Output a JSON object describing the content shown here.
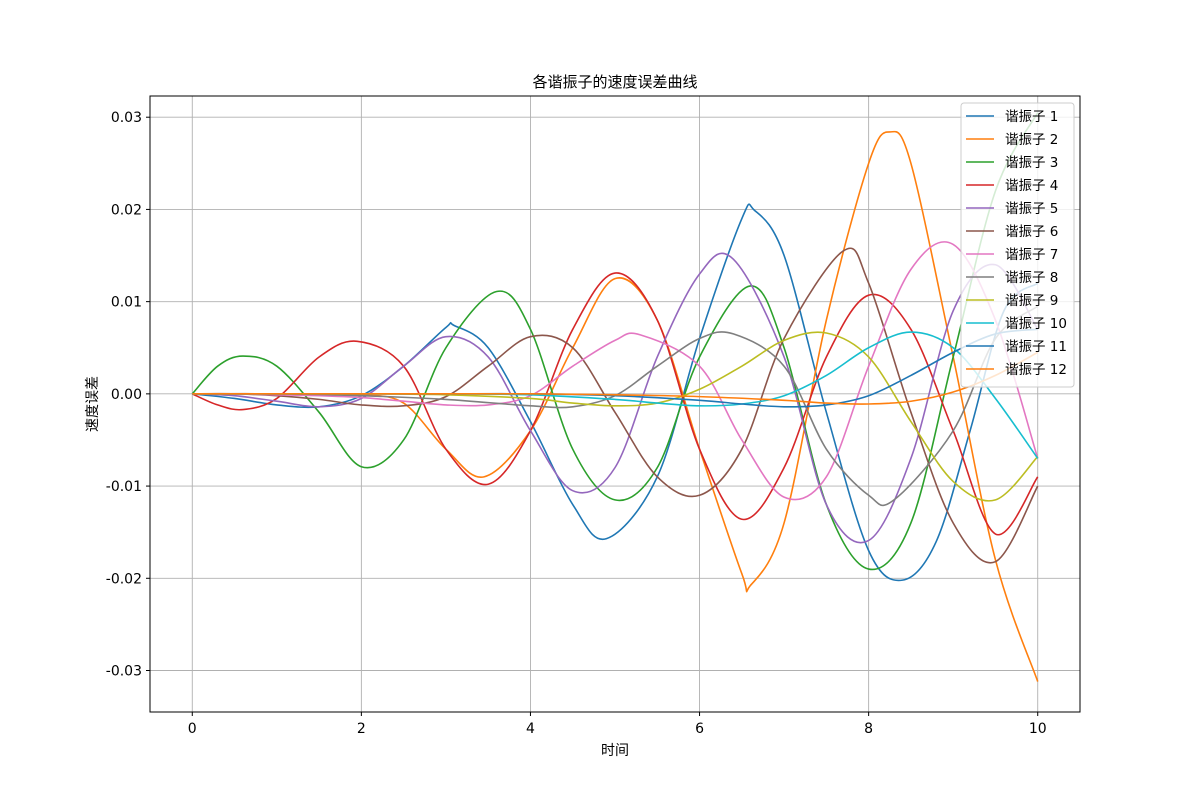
{
  "chart_data": {
    "type": "line",
    "title": "各谐振子的速度误差曲线",
    "xlabel": "时间",
    "ylabel": "速度误差",
    "xlim": [
      -0.5,
      10.5
    ],
    "ylim": [
      -0.0345,
      0.0323
    ],
    "xticks": [
      0,
      2,
      4,
      6,
      8,
      10
    ],
    "xtick_labels": [
      "0",
      "2",
      "4",
      "6",
      "8",
      "10"
    ],
    "yticks": [
      -0.03,
      -0.02,
      -0.01,
      0.0,
      0.01,
      0.02,
      0.03
    ],
    "ytick_labels": [
      "-0.03",
      "-0.02",
      "-0.01",
      "0.00",
      "0.01",
      "0.02",
      "0.03"
    ],
    "grid": true,
    "legend_position": "upper right",
    "series": [
      {
        "name": "谐振子 1",
        "color": "#1f77b4",
        "x": [
          0,
          0.5,
          1,
          1.5,
          2,
          2.5,
          3,
          3.1,
          3.5,
          4,
          4.5,
          4.9,
          5.5,
          6,
          6.5,
          6.65,
          7,
          7.5,
          8,
          8.4,
          8.8,
          9.2,
          9.6,
          10
        ],
        "y": [
          0,
          -0.0005,
          -0.0012,
          -0.0014,
          -0.0002,
          0.003,
          0.0072,
          0.0074,
          0.005,
          -0.003,
          -0.012,
          -0.0157,
          -0.009,
          0.006,
          0.019,
          0.0199,
          0.015,
          -0.002,
          -0.017,
          -0.0202,
          -0.016,
          -0.004,
          0.009,
          0.012
        ]
      },
      {
        "name": "谐振子 2",
        "color": "#ff7f0e",
        "x": [
          0,
          0.5,
          1,
          1.5,
          2,
          2.5,
          3,
          3.45,
          4,
          4.5,
          5,
          5.5,
          6,
          6.5,
          6.6,
          7,
          7.5,
          8,
          8.25,
          8.5,
          9,
          9.5,
          10
        ],
        "y": [
          0,
          0,
          0,
          0,
          -0.0001,
          -0.001,
          -0.006,
          -0.009,
          -0.004,
          0.005,
          0.0125,
          0.008,
          -0.006,
          -0.0195,
          -0.0208,
          -0.014,
          0.008,
          0.025,
          0.0284,
          0.025,
          0.004,
          -0.018,
          -0.0312
        ]
      },
      {
        "name": "谐振子 3",
        "color": "#2ca02c",
        "x": [
          0,
          0.3,
          0.6,
          1,
          1.5,
          2,
          2.5,
          3,
          3.6,
          4,
          4.5,
          5,
          5.5,
          6,
          6.6,
          7,
          7.5,
          8,
          8.5,
          9,
          9.5,
          10
        ],
        "y": [
          0,
          0.003,
          0.0041,
          0.003,
          -0.002,
          -0.0079,
          -0.005,
          0.005,
          0.0111,
          0.007,
          -0.006,
          -0.0115,
          -0.008,
          0.004,
          0.0117,
          0.005,
          -0.012,
          -0.019,
          -0.014,
          0.004,
          0.022,
          0.0305
        ]
      },
      {
        "name": "谐振子 4",
        "color": "#d62728",
        "x": [
          0,
          0.3,
          0.6,
          1,
          1.5,
          1.95,
          2.5,
          3,
          3.5,
          4,
          4.5,
          5,
          5.5,
          6,
          6.5,
          7,
          7.5,
          8,
          8.5,
          9,
          9.5,
          10
        ],
        "y": [
          0,
          -0.0012,
          -0.0017,
          -0.0005,
          0.004,
          0.0057,
          0.003,
          -0.006,
          -0.0098,
          -0.004,
          0.007,
          0.0131,
          0.008,
          -0.006,
          -0.0136,
          -0.008,
          0.004,
          0.0107,
          0.007,
          -0.004,
          -0.0152,
          -0.009
        ]
      },
      {
        "name": "谐振子 5",
        "color": "#9467bd",
        "x": [
          0,
          0.5,
          1,
          1.5,
          2,
          2.5,
          3,
          3.5,
          4,
          4.5,
          5,
          5.5,
          6,
          6.4,
          7,
          7.5,
          8,
          8.5,
          9,
          9.5,
          10
        ],
        "y": [
          0,
          -0.0002,
          -0.0008,
          -0.0014,
          -0.0005,
          0.003,
          0.0062,
          0.004,
          -0.004,
          -0.0105,
          -0.008,
          0.004,
          0.013,
          0.0146,
          0.004,
          -0.012,
          -0.0159,
          -0.007,
          0.009,
          0.014,
          0.007
        ]
      },
      {
        "name": "谐振子 6",
        "color": "#8c564b",
        "x": [
          0,
          0.5,
          1,
          1.5,
          2,
          2.5,
          3,
          3.5,
          4,
          4.5,
          5,
          5.5,
          6,
          6.5,
          7,
          7.7,
          8,
          8.5,
          9,
          9.5,
          10
        ],
        "y": [
          0,
          0,
          -0.0002,
          -0.0006,
          -0.0012,
          -0.0013,
          -0.0003,
          0.003,
          0.0062,
          0.005,
          -0.002,
          -0.009,
          -0.011,
          -0.006,
          0.006,
          0.0155,
          0.012,
          -0.002,
          -0.014,
          -0.0182,
          -0.01
        ]
      },
      {
        "name": "谐振子 7",
        "color": "#e377c2",
        "x": [
          0,
          0.5,
          1,
          1.5,
          2,
          2.5,
          3,
          3.5,
          4,
          4.5,
          5,
          5.3,
          6,
          6.5,
          7,
          7.5,
          8,
          8.5,
          9,
          9.5,
          10
        ],
        "y": [
          0,
          0,
          -0.0001,
          -0.0002,
          -0.0004,
          -0.0008,
          -0.0012,
          -0.0012,
          -0.0002,
          0.003,
          0.0058,
          0.0064,
          0.003,
          -0.005,
          -0.0112,
          -0.009,
          0.003,
          0.0135,
          0.0162,
          0.008,
          -0.007
        ]
      },
      {
        "name": "谐振子 8",
        "color": "#7f7f7f",
        "x": [
          0,
          1,
          2,
          3,
          4,
          4.5,
          5,
          5.5,
          6,
          6.4,
          7,
          7.5,
          8,
          8.3,
          9,
          9.5,
          10
        ],
        "y": [
          0,
          0,
          -0.0002,
          -0.0006,
          -0.0013,
          -0.0014,
          -0.0002,
          0.003,
          0.006,
          0.0065,
          0.003,
          -0.006,
          -0.011,
          -0.0115,
          -0.004,
          0.006,
          0.0095
        ]
      },
      {
        "name": "谐振子 9",
        "color": "#bcbd22",
        "x": [
          0,
          1,
          2,
          3,
          4,
          4.5,
          5,
          5.5,
          6,
          6.5,
          7,
          7.5,
          8,
          8.5,
          9,
          9.5,
          10
        ],
        "y": [
          0,
          0,
          0,
          -0.0001,
          -0.0005,
          -0.001,
          -0.0013,
          -0.001,
          0.0005,
          0.003,
          0.0058,
          0.0066,
          0.004,
          -0.003,
          -0.0095,
          -0.0115,
          -0.0068
        ]
      },
      {
        "name": "谐振子 10",
        "color": "#17becf",
        "x": [
          0,
          1,
          2,
          3,
          4,
          5,
          5.5,
          6,
          6.5,
          7,
          7.5,
          8,
          8.5,
          9,
          9.5,
          10
        ],
        "y": [
          0,
          0,
          0,
          0,
          -0.0001,
          -0.0006,
          -0.001,
          -0.0013,
          -0.0011,
          -0.0002,
          0.002,
          0.005,
          0.0067,
          0.005,
          -0.0005,
          -0.007
        ]
      },
      {
        "name": "谐振子 11",
        "color": "#1f77b4",
        "x": [
          0,
          1,
          2,
          3,
          4,
          5,
          6,
          6.5,
          7,
          7.5,
          8,
          8.5,
          9,
          9.5,
          10
        ],
        "y": [
          0,
          0,
          0,
          0,
          0,
          -0.0002,
          -0.0007,
          -0.0011,
          -0.0014,
          -0.0012,
          -0.0002,
          0.002,
          0.0045,
          0.0065,
          0.007
        ]
      },
      {
        "name": "谐振子 12",
        "color": "#ff7f0e",
        "x": [
          0,
          1,
          2,
          3,
          4,
          5,
          6,
          7,
          7.5,
          8,
          8.5,
          9,
          9.5,
          10
        ],
        "y": [
          0,
          0,
          0,
          0,
          0,
          -0.0001,
          -0.0003,
          -0.0007,
          -0.001,
          -0.0011,
          -0.0008,
          0.0002,
          0.002,
          0.0045
        ]
      }
    ]
  }
}
